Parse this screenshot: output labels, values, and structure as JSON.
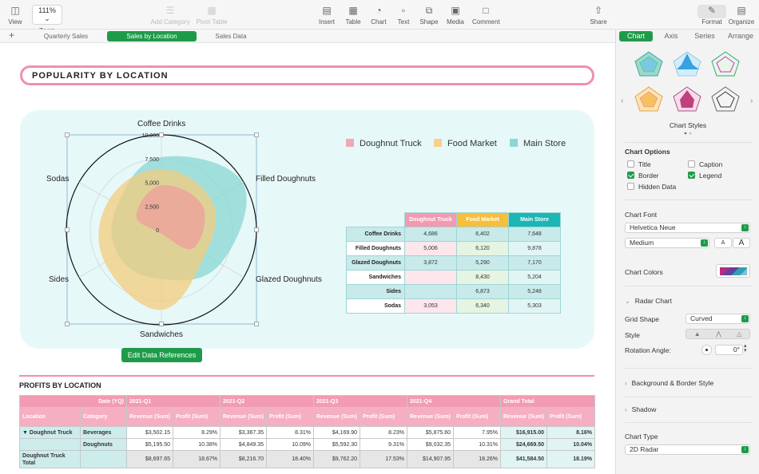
{
  "toolbar": {
    "view": "View",
    "zoom_label": "Zoom",
    "zoom_value": "111%",
    "add_category": "Add Category",
    "pivot_table": "Pivot Table",
    "insert": "Insert",
    "table": "Table",
    "chart": "Chart",
    "text": "Text",
    "shape": "Shape",
    "media": "Media",
    "comment": "Comment",
    "share": "Share",
    "format": "Format",
    "organize": "Organize"
  },
  "sheets": {
    "plus": "+",
    "tabs": [
      {
        "label": "Quarterly Sales"
      },
      {
        "label": "Sales by Location"
      },
      {
        "label": "Sales Data"
      }
    ]
  },
  "title": "POPULARITY BY LOCATION",
  "chart_data": {
    "type": "radar",
    "categories": [
      "Coffee Drinks",
      "Filled Doughnuts",
      "Glazed Doughnuts",
      "Sandwiches",
      "Sides",
      "Sodas"
    ],
    "tick_labels": [
      "0",
      "2,500",
      "5,000",
      "7,500",
      "10,000"
    ],
    "rmax": 10000,
    "series": [
      {
        "name": "Main Store",
        "color": "#8ad7d3",
        "values": [
          7648,
          9878,
          7170,
          5204,
          5248,
          5303
        ]
      },
      {
        "name": "Food Market",
        "color": "#f3cc7e",
        "values": [
          6402,
          6120,
          5290,
          8430,
          6873,
          6340
        ]
      },
      {
        "name": "Doughnut Truck",
        "color": "#ee9e9d",
        "values": [
          4686,
          5006,
          3872,
          0,
          0,
          3053
        ]
      }
    ],
    "legend": [
      "Doughnut Truck",
      "Food Market",
      "Main Store"
    ]
  },
  "legend_colors": {
    "Doughnut Truck": "#f0a9b4",
    "Food Market": "#f5d18a",
    "Main Store": "#8ad7d3"
  },
  "data_table": {
    "headers": [
      "Doughnut Truck",
      "Food Market",
      "Main Store"
    ],
    "header_colors": [
      "#f29ab0",
      "#f6bf3c",
      "#1bb5b5"
    ],
    "rows": [
      {
        "label": "Coffee Drinks",
        "values": [
          "4,686",
          "6,402",
          "7,648"
        ]
      },
      {
        "label": "Filled Doughnuts",
        "values": [
          "5,006",
          "6,120",
          "9,878"
        ]
      },
      {
        "label": "Glazed Doughnuts",
        "values": [
          "3,872",
          "5,290",
          "7,170"
        ]
      },
      {
        "label": "Sandwiches",
        "values": [
          "",
          "8,430",
          "5,204"
        ]
      },
      {
        "label": "Sides",
        "values": [
          "",
          "6,873",
          "5,248"
        ]
      },
      {
        "label": "Sodas",
        "values": [
          "3,053",
          "6,340",
          "5,303"
        ]
      }
    ]
  },
  "edit_data_button": "Edit Data References",
  "profits": {
    "title": "PROFITS BY LOCATION",
    "date_label": "Date (YQ)",
    "quarters": [
      "2021-Q1",
      "2021-Q2",
      "2021-Q3",
      "2021-Q4",
      "Grand Total"
    ],
    "location": "Location",
    "category": "Category",
    "revenue": "Revenue (Sum)",
    "profit": "Profit (Sum)",
    "rows": [
      {
        "loc": "Doughnut Truck",
        "cat": "Beverages",
        "vals": [
          "$3,502.15",
          "8.29%",
          "$3,367.35",
          "8.31%",
          "$4,169.90",
          "8.23%",
          "$5,875.60",
          "7.95%",
          "$16,915.00",
          "8.16%"
        ]
      },
      {
        "loc": "",
        "cat": "Doughnuts",
        "vals": [
          "$5,195.50",
          "10.38%",
          "$4,849.35",
          "10.09%",
          "$5,592.30",
          "9.31%",
          "$9,032.35",
          "10.31%",
          "$24,669.50",
          "10.04%"
        ]
      },
      {
        "loc": "Doughnut Truck Total",
        "cat": "",
        "vals": [
          "$8,697.65",
          "18.67%",
          "$8,216.70",
          "18.40%",
          "$9,762.20",
          "17.53%",
          "$14,907.95",
          "18.26%",
          "$41,584.50",
          "18.19%"
        ]
      }
    ]
  },
  "sidebar": {
    "tabs": [
      "Chart",
      "Axis",
      "Series",
      "Arrange"
    ],
    "chart_styles": "Chart Styles",
    "chart_options": "Chart Options",
    "options": [
      {
        "label": "Title",
        "checked": false
      },
      {
        "label": "Caption",
        "checked": false
      },
      {
        "label": "Border",
        "checked": true
      },
      {
        "label": "Legend",
        "checked": true
      },
      {
        "label": "Hidden Data",
        "checked": false
      }
    ],
    "chart_font": "Chart Font",
    "font_name": "Helvetica Neue",
    "font_weight": "Medium",
    "font_small": "A",
    "font_large": "A",
    "chart_colors": "Chart Colors",
    "radar_chart": "Radar Chart",
    "grid_shape_label": "Grid Shape",
    "grid_shape_value": "Curved",
    "style_label": "Style",
    "rotation_label": "Rotation Angle:",
    "rotation_value": "0°",
    "background_border": "Background & Border Style",
    "shadow": "Shadow",
    "chart_type_label": "Chart Type",
    "chart_type_value": "2D Radar"
  }
}
